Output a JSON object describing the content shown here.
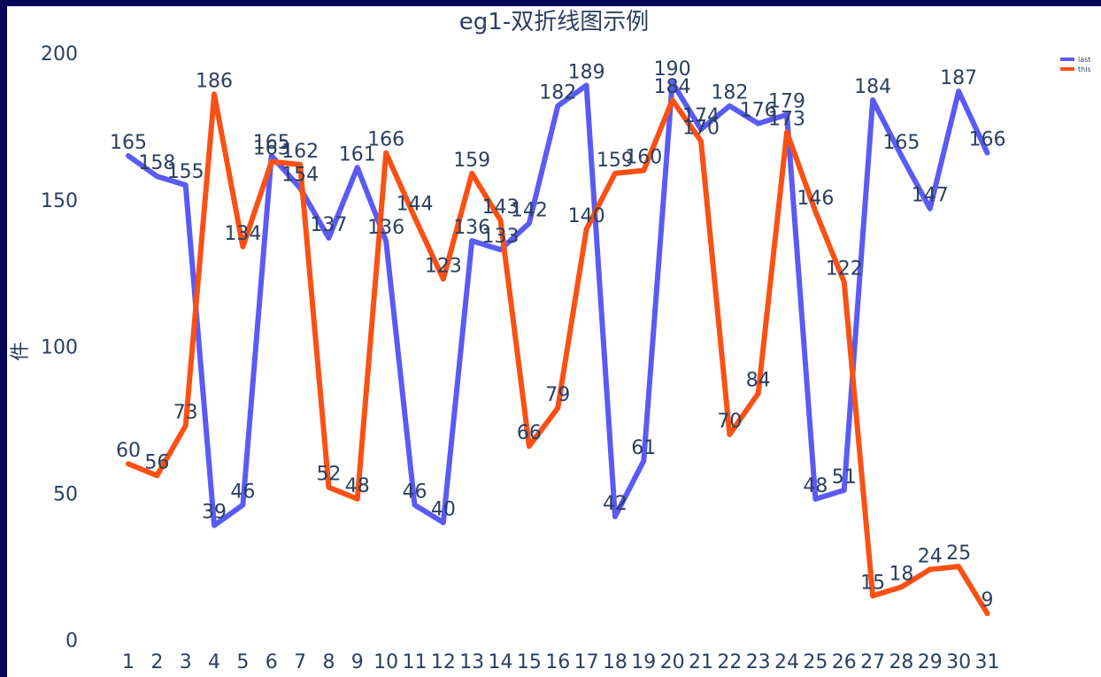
{
  "chart_data": {
    "type": "line",
    "title": "eg1-双折线图示例",
    "ylabel": "件",
    "xlabel": "",
    "ylim": [
      0,
      200
    ],
    "yticks": [
      0,
      50,
      100,
      150,
      200
    ],
    "x": [
      1,
      2,
      3,
      4,
      5,
      6,
      7,
      8,
      9,
      10,
      11,
      12,
      13,
      14,
      15,
      16,
      17,
      18,
      19,
      20,
      21,
      22,
      23,
      24,
      25,
      26,
      27,
      28,
      29,
      30,
      31
    ],
    "grid": false,
    "legend_position": "top-right",
    "series": [
      {
        "name": "last",
        "color": "#5a5af5",
        "values": [
          165,
          158,
          155,
          39,
          46,
          165,
          154,
          137,
          161,
          136,
          46,
          40,
          136,
          133,
          142,
          182,
          189,
          42,
          61,
          190,
          174,
          182,
          176,
          179,
          48,
          51,
          184,
          165,
          147,
          187,
          166
        ]
      },
      {
        "name": "this",
        "color": "#fa5014",
        "values": [
          60,
          56,
          73,
          186,
          134,
          163,
          162,
          52,
          48,
          166,
          144,
          123,
          159,
          143,
          66,
          79,
          140,
          159,
          160,
          184,
          170,
          70,
          84,
          173,
          146,
          122,
          15,
          18,
          24,
          25,
          9
        ]
      }
    ]
  }
}
